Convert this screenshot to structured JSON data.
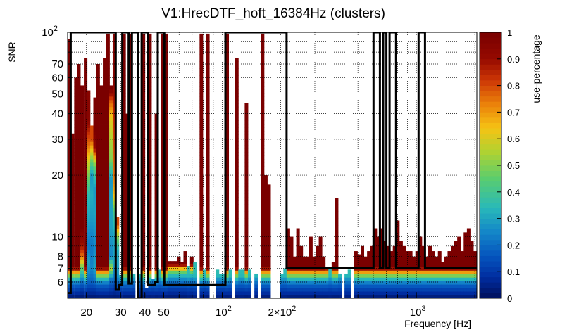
{
  "chart_data": {
    "type": "heatmap",
    "title": "V1:HrecDTF_hoft_16384Hz (clusters)",
    "xlabel": "Frequency [Hz]",
    "ylabel": "SNR",
    "zlabel": "use-percentage",
    "x_scale": "log",
    "y_scale": "log",
    "xlim": [
      16,
      2048
    ],
    "ylim": [
      5,
      100
    ],
    "zlim": [
      0,
      1
    ],
    "x_ticks": [
      {
        "value": 20,
        "label": "20"
      },
      {
        "value": 30,
        "label": "30"
      },
      {
        "value": 40,
        "label": "40"
      },
      {
        "value": 50,
        "label": "50"
      },
      {
        "value": 100,
        "label": "10",
        "exp": "2"
      },
      {
        "value": 200,
        "label": "2×10",
        "exp": "2"
      },
      {
        "value": 1000,
        "label": "10",
        "exp": "3"
      }
    ],
    "y_ticks": [
      {
        "value": 6,
        "label": "6"
      },
      {
        "value": 7,
        "label": "7"
      },
      {
        "value": 8,
        "label": "8"
      },
      {
        "value": 10,
        "label": "10"
      },
      {
        "value": 20,
        "label": "20"
      },
      {
        "value": 30,
        "label": "30"
      },
      {
        "value": 40,
        "label": "40"
      },
      {
        "value": 50,
        "label": "50"
      },
      {
        "value": 60,
        "label": "60"
      },
      {
        "value": 70,
        "label": "70"
      },
      {
        "value": 100,
        "label": "10",
        "exp": "2"
      }
    ],
    "z_ticks": [
      {
        "value": 0,
        "label": "0"
      },
      {
        "value": 0.1,
        "label": "0.1"
      },
      {
        "value": 0.2,
        "label": "0.2"
      },
      {
        "value": 0.3,
        "label": "0.3"
      },
      {
        "value": 0.4,
        "label": "0.4"
      },
      {
        "value": 0.5,
        "label": "0.5"
      },
      {
        "value": 0.6,
        "label": "0.6"
      },
      {
        "value": 0.7,
        "label": "0.7"
      },
      {
        "value": 0.8,
        "label": "0.8"
      },
      {
        "value": 0.9,
        "label": "0.9"
      },
      {
        "value": 1,
        "label": "1"
      }
    ],
    "grid": true,
    "colorbar_position": "right",
    "columns": [
      {
        "f": 16.0,
        "top": 93,
        "prof": "full"
      },
      {
        "f": 16.6,
        "top": 32,
        "prof": "full"
      },
      {
        "f": 17.3,
        "top": 60,
        "prof": "full"
      },
      {
        "f": 17.9,
        "top": 70,
        "prof": "full"
      },
      {
        "f": 18.6,
        "top": 55,
        "prof": "p1"
      },
      {
        "f": 19.4,
        "top": 75,
        "prof": "full"
      },
      {
        "f": 20.1,
        "top": 52,
        "prof": "p2"
      },
      {
        "f": 20.9,
        "top": 35,
        "prof": "p3"
      },
      {
        "f": 21.7,
        "top": 48,
        "prof": "p4"
      },
      {
        "f": 22.5,
        "top": 70,
        "prof": "full"
      },
      {
        "f": 23.4,
        "top": 55,
        "prof": "full"
      },
      {
        "f": 24.3,
        "top": 75,
        "prof": "full"
      },
      {
        "f": 25.3,
        "top": 100,
        "prof": "full"
      },
      {
        "f": 26.2,
        "top": 55,
        "prof": "p5"
      },
      {
        "f": 27.3,
        "top": 100,
        "prof": "p6"
      },
      {
        "f": 28.3,
        "top": 12.5,
        "prof": "p7"
      },
      {
        "f": 29.4,
        "top": 6.5,
        "prof": "low"
      },
      {
        "f": 30.6,
        "top": 100,
        "prof": "full"
      },
      {
        "f": 31.8,
        "top": 40,
        "prof": "full"
      },
      {
        "f": 33.0,
        "top": 100,
        "prof": "full"
      },
      {
        "f": 34.3,
        "top": 6.6,
        "prof": "low"
      },
      {
        "f": 37.0,
        "top": 6.6,
        "prof": "low"
      },
      {
        "f": 38.5,
        "top": 100,
        "prof": "full"
      },
      {
        "f": 40.0,
        "top": 5.6,
        "prof": "low"
      },
      {
        "f": 41.6,
        "top": 100,
        "prof": "full"
      },
      {
        "f": 43.2,
        "top": 6.2,
        "prof": "low"
      },
      {
        "f": 44.9,
        "top": 40,
        "prof": "full"
      },
      {
        "f": 46.6,
        "top": 6.9,
        "prof": "low"
      },
      {
        "f": 48.4,
        "top": 100,
        "prof": "full"
      },
      {
        "f": 50.3,
        "top": 100,
        "prof": "full"
      },
      {
        "f": 52.3,
        "top": 7.6,
        "prof": "mid"
      },
      {
        "f": 54.3,
        "top": 7.6,
        "prof": "mid"
      },
      {
        "f": 56.4,
        "top": 7.6,
        "prof": "mid"
      },
      {
        "f": 58.6,
        "top": 8.0,
        "prof": "mid"
      },
      {
        "f": 60.9,
        "top": 7.5,
        "prof": "mid"
      },
      {
        "f": 63.2,
        "top": 8.5,
        "prof": "mid"
      },
      {
        "f": 65.7,
        "top": 7.2,
        "prof": "low"
      },
      {
        "f": 68.3,
        "top": 8.0,
        "prof": "mid"
      },
      {
        "f": 70.9,
        "top": 7.5,
        "prof": "low"
      },
      {
        "f": 76.5,
        "top": 100,
        "prof": "full"
      },
      {
        "f": 79.5,
        "top": 6.9,
        "prof": "low"
      },
      {
        "f": 82.6,
        "top": 100,
        "prof": "full"
      },
      {
        "f": 92.6,
        "top": 6.9,
        "prof": "low"
      },
      {
        "f": 96.3,
        "top": 6.6,
        "prof": "low"
      },
      {
        "f": 100.0,
        "top": 6.6,
        "prof": "low"
      },
      {
        "f": 103.9,
        "top": 100,
        "prof": "full"
      },
      {
        "f": 107.9,
        "top": 6.9,
        "prof": "low"
      },
      {
        "f": 116.5,
        "top": 75,
        "prof": "full"
      },
      {
        "f": 121.0,
        "top": 6.9,
        "prof": "low"
      },
      {
        "f": 125.7,
        "top": 6.9,
        "prof": "low"
      },
      {
        "f": 130.6,
        "top": 45,
        "prof": "full"
      },
      {
        "f": 135.7,
        "top": 6.9,
        "prof": "low"
      },
      {
        "f": 146.5,
        "top": 6.6,
        "prof": "low"
      },
      {
        "f": 158.1,
        "top": 100,
        "prof": "full"
      },
      {
        "f": 164.3,
        "top": 20,
        "prof": "full"
      },
      {
        "f": 170.7,
        "top": 18,
        "prof": "full"
      },
      {
        "f": 198.9,
        "top": 6.6,
        "prof": "low"
      },
      {
        "f": 206.6,
        "top": 7.0,
        "prof": "low"
      },
      {
        "f": 214.6,
        "top": 11.0,
        "prof": "full"
      },
      {
        "f": 223.0,
        "top": 10.0,
        "prof": "full"
      },
      {
        "f": 231.7,
        "top": 8.0,
        "prof": "full"
      },
      {
        "f": 240.7,
        "top": 11.0,
        "prof": "full"
      },
      {
        "f": 250.0,
        "top": 9.0,
        "prof": "full"
      },
      {
        "f": 259.7,
        "top": 8.0,
        "prof": "full"
      },
      {
        "f": 269.8,
        "top": 8.0,
        "prof": "full"
      },
      {
        "f": 280.3,
        "top": 10.0,
        "prof": "full"
      },
      {
        "f": 291.2,
        "top": 8.0,
        "prof": "full"
      },
      {
        "f": 302.6,
        "top": 9.0,
        "prof": "full"
      },
      {
        "f": 314.3,
        "top": 10.0,
        "prof": "full"
      },
      {
        "f": 326.6,
        "top": 8.0,
        "prof": "full"
      },
      {
        "f": 339.3,
        "top": 7.0,
        "prof": "full"
      },
      {
        "f": 352.5,
        "top": 7.0,
        "prof": "low"
      },
      {
        "f": 366.2,
        "top": 7.5,
        "prof": "full"
      },
      {
        "f": 380.4,
        "top": 15.5,
        "prof": "full"
      },
      {
        "f": 395.2,
        "top": 6.6,
        "prof": "low"
      },
      {
        "f": 426.5,
        "top": 6.6,
        "prof": "low"
      },
      {
        "f": 443.1,
        "top": 6.9,
        "prof": "low"
      },
      {
        "f": 478.3,
        "top": 8.5,
        "prof": "full"
      },
      {
        "f": 496.9,
        "top": 8.2,
        "prof": "full"
      },
      {
        "f": 516.3,
        "top": 9.0,
        "prof": "full"
      },
      {
        "f": 536.4,
        "top": 8.0,
        "prof": "full"
      },
      {
        "f": 557.3,
        "top": 8.5,
        "prof": "full"
      },
      {
        "f": 578.9,
        "top": 9.0,
        "prof": "full"
      },
      {
        "f": 601.5,
        "top": 11.0,
        "prof": "full"
      },
      {
        "f": 624.9,
        "top": 10.0,
        "prof": "full"
      },
      {
        "f": 649.2,
        "top": 11.0,
        "prof": "full"
      },
      {
        "f": 674.5,
        "top": 9.5,
        "prof": "full"
      },
      {
        "f": 700.7,
        "top": 9.0,
        "prof": "full"
      },
      {
        "f": 728.0,
        "top": 8.5,
        "prof": "full"
      },
      {
        "f": 756.3,
        "top": 9.0,
        "prof": "full"
      },
      {
        "f": 785.8,
        "top": 12.0,
        "prof": "full"
      },
      {
        "f": 816.4,
        "top": 9.5,
        "prof": "full"
      },
      {
        "f": 848.2,
        "top": 9.0,
        "prof": "full"
      },
      {
        "f": 881.2,
        "top": 8.5,
        "prof": "full"
      },
      {
        "f": 915.5,
        "top": 8.5,
        "prof": "full"
      },
      {
        "f": 951.1,
        "top": 8.0,
        "prof": "full"
      },
      {
        "f": 988.1,
        "top": 8.5,
        "prof": "full"
      },
      {
        "f": 1026.6,
        "top": 10.0,
        "prof": "full"
      },
      {
        "f": 1066.5,
        "top": 9.0,
        "prof": "full"
      },
      {
        "f": 1108.0,
        "top": 8.0,
        "prof": "full"
      },
      {
        "f": 1151.2,
        "top": 9.0,
        "prof": "full"
      },
      {
        "f": 1196.0,
        "top": 8.5,
        "prof": "full"
      },
      {
        "f": 1242.5,
        "top": 8.0,
        "prof": "full"
      },
      {
        "f": 1290.9,
        "top": 8.5,
        "prof": "full"
      },
      {
        "f": 1341.1,
        "top": 7.5,
        "prof": "full"
      },
      {
        "f": 1393.3,
        "top": 8.0,
        "prof": "full"
      },
      {
        "f": 1447.6,
        "top": 8.5,
        "prof": "full"
      },
      {
        "f": 1503.9,
        "top": 9.0,
        "prof": "full"
      },
      {
        "f": 1562.5,
        "top": 9.5,
        "prof": "full"
      },
      {
        "f": 1623.3,
        "top": 10.0,
        "prof": "full"
      },
      {
        "f": 1686.5,
        "top": 8.5,
        "prof": "full"
      },
      {
        "f": 1752.1,
        "top": 10.5,
        "prof": "full"
      },
      {
        "f": 1820.4,
        "top": 11.0,
        "prof": "full"
      },
      {
        "f": 1891.2,
        "top": 9.5,
        "prof": "full"
      },
      {
        "f": 1964.8,
        "top": 8.5,
        "prof": "full"
      }
    ],
    "profiles": {
      "full": [
        [
          5.0,
          0.02
        ],
        [
          5.25,
          0.07
        ],
        [
          5.5,
          0.12
        ],
        [
          5.75,
          0.17
        ],
        [
          6.0,
          0.25
        ],
        [
          6.3,
          0.38
        ],
        [
          6.6,
          0.6
        ],
        [
          6.9,
          0.85
        ],
        [
          7.2,
          1.0
        ]
      ],
      "low": [
        [
          5.0,
          0.03
        ],
        [
          5.3,
          0.08
        ],
        [
          5.6,
          0.13
        ],
        [
          5.9,
          0.19
        ],
        [
          6.2,
          0.27
        ],
        [
          6.5,
          0.35
        ]
      ],
      "mid": [
        [
          5.0,
          0.02
        ],
        [
          5.3,
          0.07
        ],
        [
          5.6,
          0.12
        ],
        [
          5.9,
          0.18
        ],
        [
          6.2,
          0.25
        ],
        [
          6.5,
          0.35
        ],
        [
          6.8,
          0.5
        ],
        [
          7.1,
          0.75
        ],
        [
          7.4,
          1.0
        ]
      ],
      "p1": [
        [
          5.0,
          0.02
        ],
        [
          5.5,
          0.1
        ],
        [
          6.0,
          0.2
        ],
        [
          6.6,
          0.35
        ],
        [
          7.2,
          0.5
        ],
        [
          8.0,
          0.75
        ],
        [
          9.0,
          0.88
        ],
        [
          11.0,
          1.0
        ]
      ],
      "p2": [
        [
          5.0,
          0.02
        ],
        [
          5.5,
          0.1
        ],
        [
          6.0,
          0.18
        ],
        [
          6.8,
          0.26
        ],
        [
          7.5,
          0.3
        ],
        [
          9.0,
          0.22
        ],
        [
          12.0,
          0.3
        ],
        [
          16.0,
          0.35
        ],
        [
          22.0,
          0.55
        ],
        [
          28.0,
          0.75
        ],
        [
          38.0,
          0.95
        ]
      ],
      "p3": [
        [
          5.0,
          0.02
        ],
        [
          5.5,
          0.1
        ],
        [
          6.0,
          0.18
        ],
        [
          7.0,
          0.25
        ],
        [
          9.0,
          0.22
        ],
        [
          12.0,
          0.28
        ],
        [
          16.0,
          0.32
        ],
        [
          20.0,
          0.28
        ],
        [
          24.0,
          0.5
        ],
        [
          30.0,
          0.8
        ]
      ],
      "p4": [
        [
          5.0,
          0.02
        ],
        [
          5.5,
          0.1
        ],
        [
          6.0,
          0.2
        ],
        [
          7.0,
          0.3
        ],
        [
          9.0,
          0.25
        ],
        [
          13.0,
          0.3
        ],
        [
          17.0,
          0.28
        ],
        [
          22.0,
          0.45
        ],
        [
          27.0,
          0.9
        ],
        [
          33.0,
          1.0
        ]
      ],
      "p5": [
        [
          5.0,
          0.02
        ],
        [
          5.6,
          0.12
        ],
        [
          6.2,
          0.22
        ],
        [
          7.0,
          0.55
        ],
        [
          8.0,
          0.25
        ],
        [
          11.0,
          0.3
        ],
        [
          15.0,
          0.3
        ],
        [
          19.0,
          0.28
        ],
        [
          24.0,
          0.5
        ],
        [
          30.0,
          0.55
        ],
        [
          38.0,
          0.62
        ],
        [
          47.0,
          0.8
        ],
        [
          53.0,
          1.0
        ]
      ],
      "p6": [
        [
          5.0,
          0.02
        ],
        [
          5.6,
          0.1
        ],
        [
          6.3,
          0.22
        ],
        [
          7.5,
          0.3
        ],
        [
          10.0,
          0.3
        ],
        [
          13.0,
          0.4
        ],
        [
          16.0,
          0.65
        ],
        [
          20.0,
          0.75
        ],
        [
          28.0,
          0.8
        ],
        [
          42.0,
          0.85
        ],
        [
          60.0,
          0.95
        ]
      ],
      "p7": [
        [
          5.0,
          0.02
        ],
        [
          5.5,
          0.1
        ],
        [
          6.0,
          0.2
        ],
        [
          6.6,
          0.28
        ],
        [
          7.4,
          0.3
        ],
        [
          8.5,
          0.32
        ],
        [
          10.0,
          0.5
        ],
        [
          11.5,
          0.8
        ]
      ]
    },
    "outline": [
      [
        16.0,
        5.3
      ],
      [
        16.6,
        5.3
      ],
      [
        16.6,
        100
      ],
      [
        28.3,
        100
      ],
      [
        28.3,
        5.5
      ],
      [
        29.4,
        5.5
      ],
      [
        29.4,
        5.8
      ],
      [
        30.6,
        5.8
      ],
      [
        30.6,
        100
      ],
      [
        33.0,
        100
      ],
      [
        33.0,
        5.9
      ],
      [
        34.3,
        5.9
      ],
      [
        34.3,
        100
      ],
      [
        37.0,
        100
      ],
      [
        37.0,
        5.0
      ],
      [
        38.5,
        5.0
      ],
      [
        38.5,
        100
      ],
      [
        41.6,
        100
      ],
      [
        41.6,
        5.8
      ],
      [
        44.9,
        5.8
      ],
      [
        44.9,
        6.0
      ],
      [
        46.6,
        6.0
      ],
      [
        46.6,
        100
      ],
      [
        50.3,
        100
      ],
      [
        50.3,
        5.8
      ],
      [
        92.6,
        5.8
      ],
      [
        92.6,
        5.8
      ],
      [
        103.9,
        5.8
      ],
      [
        103.9,
        100
      ],
      [
        214.6,
        100
      ],
      [
        214.6,
        7.0
      ],
      [
        601.5,
        7.0
      ],
      [
        601.5,
        100
      ],
      [
        649.2,
        100
      ],
      [
        649.2,
        7.0
      ],
      [
        674.5,
        7.0
      ],
      [
        674.5,
        100
      ],
      [
        700.7,
        100
      ],
      [
        700.7,
        7.0
      ],
      [
        728.0,
        7.0
      ],
      [
        728.0,
        100
      ],
      [
        785.8,
        100
      ],
      [
        785.8,
        7.0
      ],
      [
        1026.6,
        7.0
      ],
      [
        1026.6,
        100
      ],
      [
        1108.0,
        100
      ],
      [
        1108.0,
        7.0
      ],
      [
        2048,
        7.0
      ]
    ]
  }
}
